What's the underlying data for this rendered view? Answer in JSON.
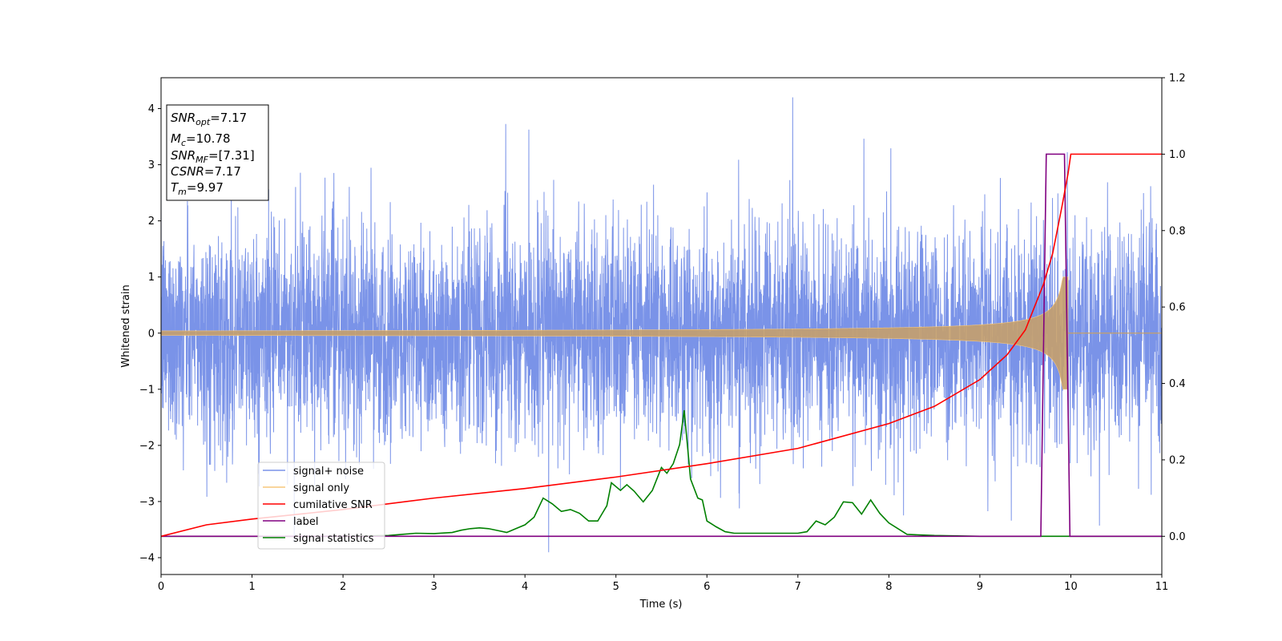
{
  "chart_data": {
    "type": "line",
    "xlabel": "Time (s)",
    "ylabel": "Whitened strain",
    "xlim": [
      0,
      11
    ],
    "ylim": [
      -4.3,
      4.55
    ],
    "y2lim": [
      -0.1,
      1.2
    ],
    "xticks": [
      "0",
      "1",
      "2",
      "3",
      "4",
      "5",
      "6",
      "7",
      "8",
      "9",
      "10",
      "11"
    ],
    "yticks": [
      "−4",
      "−3",
      "−2",
      "−1",
      "0",
      "1",
      "2",
      "3",
      "4"
    ],
    "y2ticks": [
      "0.0",
      "0.2",
      "0.4",
      "0.6",
      "0.8",
      "1.0",
      "1.2"
    ],
    "grid": false,
    "legend_position": "lower-left",
    "info_box": {
      "snr_opt": {
        "name": "SNR",
        "sub": "opt",
        "value": "=7.17"
      },
      "mc": {
        "name": "M",
        "sub": "c",
        "value": "=10.78"
      },
      "snr_mf": {
        "name": "SNR",
        "sub": "MF",
        "value": "=[7.31]"
      },
      "csnr": {
        "name": "CSNR",
        "sub": "",
        "value": "=7.17"
      },
      "tm": {
        "name": "T",
        "sub": "m",
        "value": "=9.97"
      }
    },
    "series": [
      {
        "name": "signal+ noise",
        "color": "#7a93e8",
        "axis": "left",
        "description_values": "whitened noise, amplitude approx +/-2 sigma, spikes to about 4.2 and -3.9"
      },
      {
        "name": "signal only",
        "color": "#f7c77c",
        "axis": "left",
        "chirp": {
          "t_merger": 9.97,
          "peak_amplitude": 1.0
        }
      },
      {
        "name": "cumilative SNR",
        "color": "#ff0000",
        "axis": "right",
        "x": [
          0,
          0.5,
          1,
          2,
          3,
          4,
          5,
          6,
          7,
          8,
          8.5,
          9,
          9.3,
          9.5,
          9.7,
          9.8,
          9.9,
          9.97,
          10.0,
          11
        ],
        "y": [
          0.0,
          0.03,
          0.045,
          0.07,
          0.1,
          0.125,
          0.155,
          0.19,
          0.23,
          0.295,
          0.34,
          0.41,
          0.475,
          0.54,
          0.66,
          0.74,
          0.86,
          0.95,
          1.0,
          1.0
        ]
      },
      {
        "name": "label",
        "color": "#800080",
        "axis": "right",
        "x": [
          0,
          9.67,
          9.73,
          9.93,
          9.99,
          11
        ],
        "y": [
          0,
          0,
          1,
          1,
          0,
          0
        ]
      },
      {
        "name": "signal statistics",
        "color": "#008000",
        "axis": "right",
        "x": [
          0,
          0.5,
          1,
          1.5,
          2,
          2.5,
          2.8,
          3,
          3.2,
          3.3,
          3.4,
          3.5,
          3.6,
          3.7,
          3.8,
          3.9,
          4.0,
          4.1,
          4.2,
          4.3,
          4.4,
          4.5,
          4.6,
          4.7,
          4.8,
          4.9,
          4.95,
          5.05,
          5.12,
          5.2,
          5.3,
          5.4,
          5.5,
          5.56,
          5.63,
          5.7,
          5.75,
          5.82,
          5.9,
          5.95,
          6.0,
          6.1,
          6.2,
          6.3,
          6.5,
          7.0,
          7.1,
          7.2,
          7.3,
          7.4,
          7.5,
          7.6,
          7.7,
          7.8,
          7.9,
          8.0,
          8.2,
          8.5,
          9.0,
          11
        ],
        "y": [
          0.0,
          0.0,
          0.0,
          0.0,
          0.0,
          0.002,
          0.008,
          0.007,
          0.01,
          0.016,
          0.02,
          0.022,
          0.02,
          0.015,
          0.01,
          0.02,
          0.03,
          0.05,
          0.1,
          0.085,
          0.065,
          0.07,
          0.06,
          0.04,
          0.04,
          0.08,
          0.14,
          0.12,
          0.135,
          0.118,
          0.09,
          0.12,
          0.18,
          0.165,
          0.19,
          0.24,
          0.33,
          0.15,
          0.1,
          0.095,
          0.04,
          0.025,
          0.012,
          0.008,
          0.008,
          0.008,
          0.012,
          0.04,
          0.03,
          0.05,
          0.09,
          0.088,
          0.058,
          0.095,
          0.06,
          0.035,
          0.005,
          0.002,
          0.0,
          0.0
        ]
      }
    ]
  }
}
